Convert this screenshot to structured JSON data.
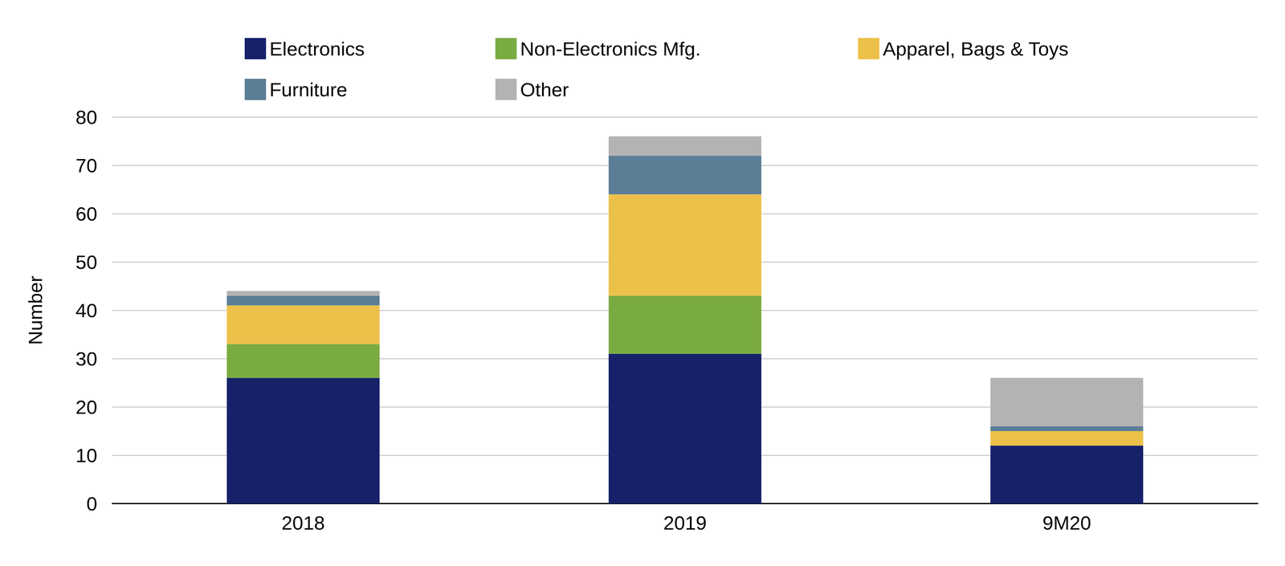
{
  "chart_data": {
    "type": "bar",
    "stacked": true,
    "grid": true,
    "legend": "top",
    "y_label": "Number",
    "categories": [
      "2018",
      "2019",
      "9M20"
    ],
    "series": [
      {
        "name": "Electronics",
        "color": "#16216a",
        "values": [
          26,
          31,
          12
        ]
      },
      {
        "name": "Non-Electronics Mfg.",
        "color": "#7aab42",
        "values": [
          7,
          12,
          0
        ]
      },
      {
        "name": "Apparel, Bags & Toys",
        "color": "#ecc14a",
        "values": [
          8,
          21,
          3
        ]
      },
      {
        "name": "Furniture",
        "color": "#5b7e96",
        "values": [
          2,
          8,
          1
        ]
      },
      {
        "name": "Other",
        "color": "#b3b3b3",
        "values": [
          1,
          4,
          10
        ]
      }
    ],
    "ylim": [
      0,
      80
    ],
    "yticks": [
      0,
      10,
      20,
      30,
      40,
      50,
      60,
      70,
      80
    ]
  }
}
